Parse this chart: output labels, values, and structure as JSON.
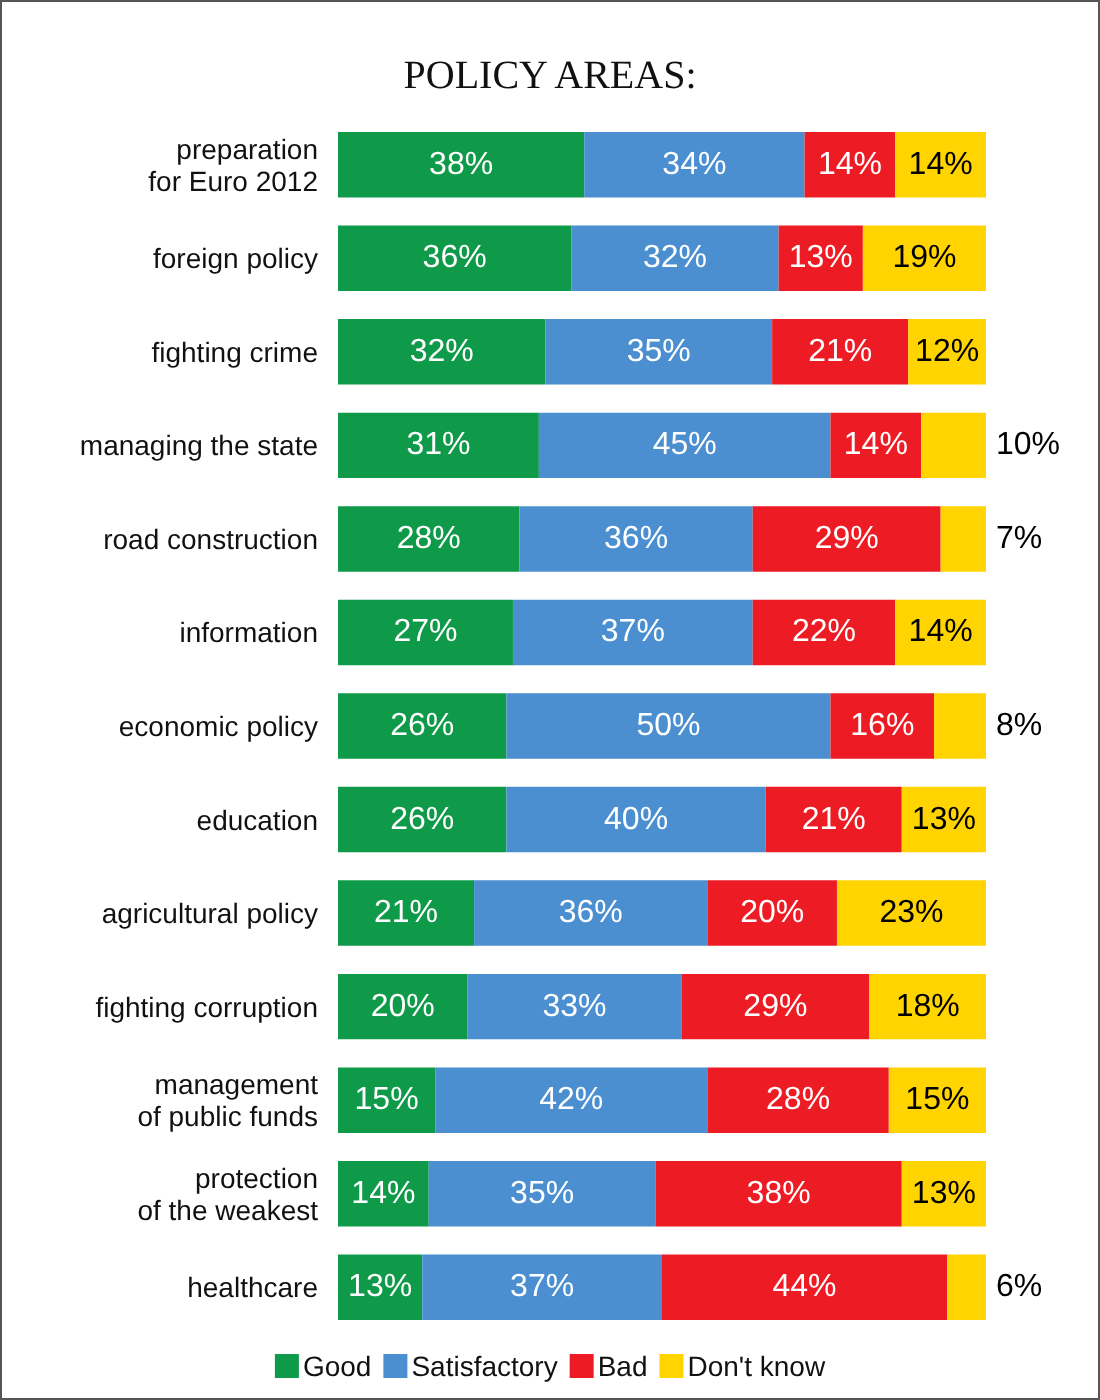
{
  "chart_data": {
    "type": "bar",
    "title": "POLICY AREAS:",
    "orientation": "horizontal",
    "stacked": true,
    "legend": "bottom",
    "tick_labels": "y",
    "categories": [
      "preparation\nfor Euro 2012",
      "foreign policy",
      "fighting crime",
      "managing the state",
      "road construction",
      "information",
      "economic policy",
      "education",
      "agricultural policy",
      "fighting corruption",
      "management\nof public funds",
      "protection\nof the weakest",
      "healthcare"
    ],
    "series": [
      {
        "name": "Good",
        "color": "#0f9a4a",
        "values": [
          38,
          36,
          32,
          31,
          28,
          27,
          26,
          26,
          21,
          20,
          15,
          14,
          13
        ],
        "value_labels": [
          "38%",
          "36%",
          "32%",
          "31%",
          "28%",
          "27%",
          "26%",
          "26%",
          "21%",
          "20%",
          "15%",
          "14%",
          "13%"
        ]
      },
      {
        "name": "Satisfactory",
        "color": "#4b8fd0",
        "values": [
          34,
          32,
          35,
          45,
          36,
          37,
          50,
          40,
          36,
          33,
          42,
          35,
          37
        ],
        "value_labels": [
          "34%",
          "32%",
          "35%",
          "45%",
          "36%",
          "37%",
          "50%",
          "40%",
          "36%",
          "33%",
          "42%",
          "35%",
          "37%"
        ]
      },
      {
        "name": "Bad",
        "color": "#ed1c24",
        "values": [
          14,
          13,
          21,
          14,
          29,
          22,
          16,
          21,
          20,
          29,
          28,
          38,
          44
        ],
        "value_labels": [
          "14%",
          "13%",
          "21%",
          "14%",
          "29%",
          "22%",
          "16%",
          "21%",
          "20%",
          "29%",
          "28%",
          "38%",
          "44%"
        ]
      },
      {
        "name": "Don't know",
        "color": "#ffd400",
        "values": [
          14,
          19,
          12,
          10,
          7,
          14,
          8,
          13,
          23,
          18,
          15,
          13,
          6
        ],
        "value_labels": [
          "14%",
          "19%",
          "12%",
          "10%",
          "7%",
          "14%",
          "8%",
          "13%",
          "23%",
          "18%",
          "15%",
          "13%",
          "6%"
        ]
      }
    ]
  }
}
